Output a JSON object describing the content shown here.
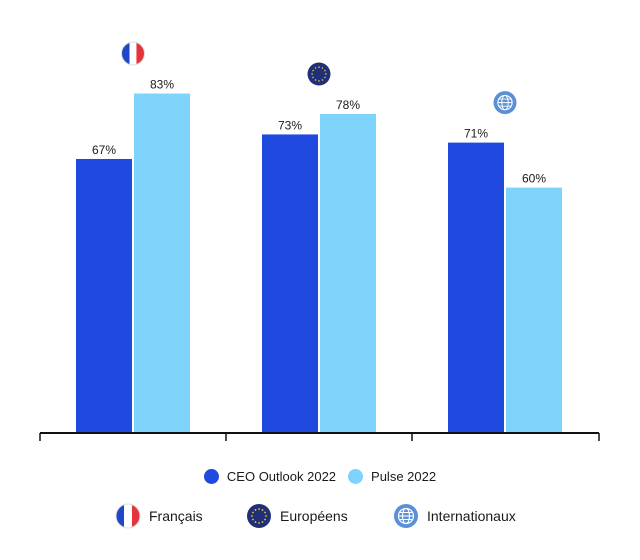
{
  "chart_data": {
    "type": "bar",
    "categories": [
      "Français",
      "Européens",
      "Internationaux"
    ],
    "series": [
      {
        "name": "CEO Outlook 2022",
        "color": "#2049e0",
        "values": [
          67,
          73,
          71
        ]
      },
      {
        "name": "Pulse 2022",
        "color": "#7dd3fc",
        "values": [
          83,
          78,
          60
        ]
      }
    ],
    "data_labels": {
      "CEO Outlook 2022": [
        "67%",
        "73%",
        "71%"
      ],
      "Pulse 2022": [
        "83%",
        "78%",
        "60%"
      ]
    },
    "value_suffix": "%",
    "ylim": [
      0,
      100
    ],
    "group_icons": [
      "france-flag-icon",
      "eu-flag-icon",
      "globe-icon"
    ],
    "grid": false,
    "legend_placement": "bottom"
  },
  "colors": {
    "france_blue": "#1f46c8",
    "france_red": "#e3333b",
    "eu_navy": "#1f2f78",
    "eu_star": "#f2c230",
    "globe": "#5b8fd6",
    "axis": "#111111"
  },
  "legend": {
    "series": [
      "CEO Outlook 2022",
      "Pulse 2022"
    ],
    "groups": [
      {
        "label": "Français",
        "icon": "france-flag-icon"
      },
      {
        "label": "Européens",
        "icon": "eu-flag-icon"
      },
      {
        "label": "Internationaux",
        "icon": "globe-icon"
      }
    ]
  }
}
